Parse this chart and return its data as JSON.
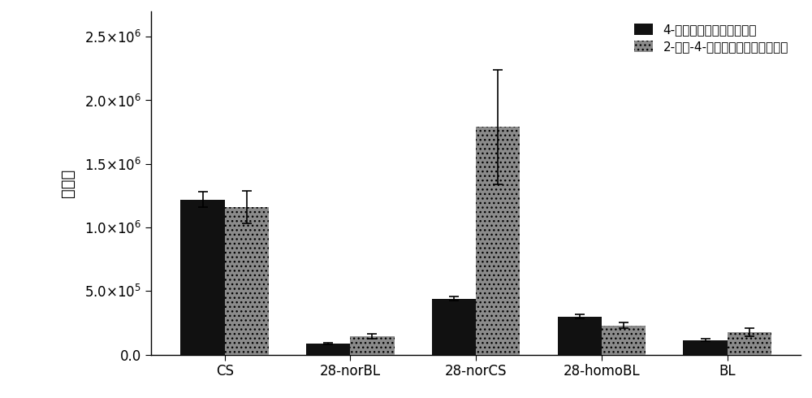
{
  "categories": [
    "CS",
    "28-norBL",
    "28-norCS",
    "28-homoBL",
    "BL"
  ],
  "series1_label": "4-苯基氨基甲基苯硼酸衍生",
  "series2_label": "2-甲基-4-苯基氨基甲基苯硼酸衍生",
  "series1_values": [
    1220000,
    85000,
    440000,
    300000,
    115000
  ],
  "series2_values": [
    1160000,
    145000,
    1790000,
    230000,
    175000
  ],
  "series1_errors": [
    60000,
    8000,
    18000,
    15000,
    12000
  ],
  "series2_errors": [
    130000,
    20000,
    450000,
    20000,
    30000
  ],
  "series1_color": "#111111",
  "series2_color": "#8B8B8B",
  "ylabel": "峰面积",
  "ylim": [
    0,
    2700000
  ],
  "yticks": [
    0,
    500000,
    1000000,
    1500000,
    2000000,
    2500000
  ],
  "bar_width": 0.35,
  "figsize": [
    10.0,
    4.9
  ],
  "dpi": 100,
  "background_color": "#ffffff",
  "legend_loc": "upper right",
  "hatch_series2": "..."
}
